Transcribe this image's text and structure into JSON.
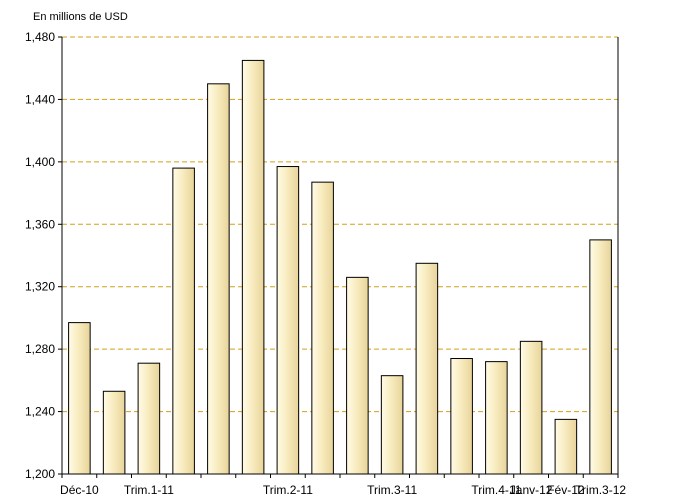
{
  "chart_data": {
    "type": "bar",
    "unit_label": "En millions de USD",
    "categories": [
      "Déc-10",
      "",
      "Trim.1-11",
      "",
      "",
      "",
      "Trim.2-11",
      "",
      "",
      "Trim.3-11",
      "",
      "",
      "Trim.4-11",
      "Janv-12",
      "Fév-12",
      "Trim.3-12"
    ],
    "values": [
      1297,
      1253,
      1271,
      1396,
      1450,
      1465,
      1397,
      1387,
      1326,
      1263,
      1335,
      1274,
      1272,
      1285,
      1235,
      1350
    ],
    "ylim": [
      1200,
      1480
    ],
    "yticks": [
      "1,200",
      "1,240",
      "1,280",
      "1,320",
      "1,360",
      "1,400",
      "1,440",
      "1,480"
    ],
    "ytick_values": [
      1200,
      1240,
      1280,
      1320,
      1360,
      1400,
      1440,
      1480
    ],
    "grid": true,
    "colors": {
      "bar_fill_light": "#fffbe6",
      "bar_fill_dark": "#e8d49a",
      "bar_stroke": "#000000",
      "gridline": "#d4a017",
      "axis": "#000000"
    }
  }
}
